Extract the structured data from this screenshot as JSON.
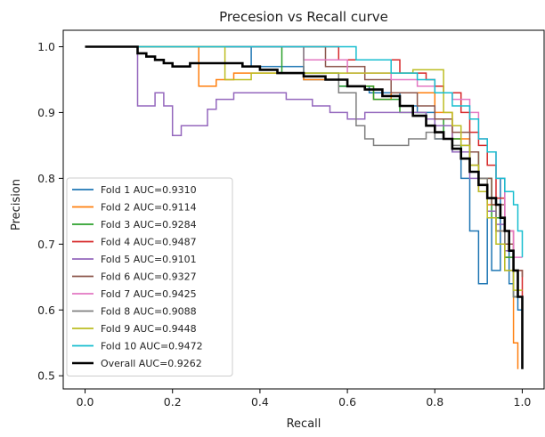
{
  "chart_data": {
    "type": "line",
    "title": "Precesion vs Recall curve",
    "xlabel": "Recall",
    "ylabel": "Precision",
    "xlim": [
      -0.05,
      1.05
    ],
    "ylim": [
      0.48,
      1.025
    ],
    "xticks": [
      "0.0",
      "0.2",
      "0.4",
      "0.6",
      "0.8",
      "1.0"
    ],
    "yticks": [
      "0.5",
      "0.6",
      "0.7",
      "0.8",
      "0.9",
      "1.0"
    ],
    "grid": false,
    "legend_position": "bottom-left",
    "series": [
      {
        "name": "Fold 1 AUC=0.9310",
        "color": "#1f77b4",
        "x": [
          0.0,
          0.25,
          0.38,
          0.5,
          0.58,
          0.65,
          0.72,
          0.76,
          0.8,
          0.84,
          0.86,
          0.88,
          0.9,
          0.92,
          0.93,
          0.95,
          0.96,
          0.97,
          0.98,
          0.99,
          1.0
        ],
        "y": [
          1.0,
          1.0,
          0.97,
          0.95,
          0.94,
          0.93,
          0.91,
          0.9,
          0.86,
          0.84,
          0.8,
          0.72,
          0.64,
          0.74,
          0.66,
          0.8,
          0.7,
          0.64,
          0.62,
          0.6,
          0.55
        ]
      },
      {
        "name": "Fold 2 AUC=0.9114",
        "color": "#ff7f0e",
        "x": [
          0.0,
          0.25,
          0.26,
          0.3,
          0.34,
          0.4,
          0.5,
          0.6,
          0.66,
          0.7,
          0.76,
          0.8,
          0.84,
          0.88,
          0.9,
          0.92,
          0.94,
          0.96,
          0.98,
          0.99
        ],
        "y": [
          1.0,
          1.0,
          0.94,
          0.95,
          0.96,
          0.96,
          0.95,
          0.94,
          0.92,
          0.93,
          0.93,
          0.9,
          0.86,
          0.82,
          0.8,
          0.76,
          0.72,
          0.68,
          0.55,
          0.51
        ]
      },
      {
        "name": "Fold 3 AUC=0.9284",
        "color": "#2ca02c",
        "x": [
          0.0,
          0.3,
          0.45,
          0.58,
          0.66,
          0.72,
          0.78,
          0.82,
          0.86,
          0.9,
          0.93,
          0.96,
          0.98,
          1.0
        ],
        "y": [
          1.0,
          1.0,
          0.96,
          0.94,
          0.92,
          0.9,
          0.89,
          0.86,
          0.84,
          0.8,
          0.74,
          0.68,
          0.62,
          0.57
        ]
      },
      {
        "name": "Fold 4 AUC=0.9487",
        "color": "#d62728",
        "x": [
          0.0,
          0.45,
          0.58,
          0.72,
          0.78,
          0.8,
          0.82,
          0.86,
          0.88,
          0.9,
          0.92,
          0.94,
          0.96,
          0.98,
          1.0
        ],
        "y": [
          1.0,
          1.0,
          0.98,
          0.96,
          0.95,
          0.94,
          0.93,
          0.9,
          0.87,
          0.85,
          0.82,
          0.77,
          0.72,
          0.66,
          0.6
        ]
      },
      {
        "name": "Fold 5 AUC=0.9101",
        "color": "#9467bd",
        "x": [
          0.0,
          0.08,
          0.12,
          0.16,
          0.18,
          0.2,
          0.22,
          0.28,
          0.3,
          0.34,
          0.4,
          0.46,
          0.52,
          0.56,
          0.6,
          0.64,
          0.7,
          0.74,
          0.78,
          0.8,
          0.84,
          0.88,
          0.9,
          0.92,
          0.94,
          0.96,
          0.98
        ],
        "y": [
          1.0,
          1.0,
          0.91,
          0.93,
          0.91,
          0.865,
          0.88,
          0.905,
          0.92,
          0.93,
          0.93,
          0.92,
          0.91,
          0.9,
          0.89,
          0.9,
          0.9,
          0.9,
          0.89,
          0.88,
          0.84,
          0.8,
          0.78,
          0.75,
          0.73,
          0.69,
          0.63
        ]
      },
      {
        "name": "Fold 6 AUC=0.9327",
        "color": "#8c564b",
        "x": [
          0.0,
          0.4,
          0.55,
          0.64,
          0.7,
          0.76,
          0.8,
          0.84,
          0.88,
          0.9,
          0.93,
          0.96,
          0.98,
          1.0
        ],
        "y": [
          1.0,
          1.0,
          0.97,
          0.95,
          0.93,
          0.91,
          0.89,
          0.87,
          0.84,
          0.8,
          0.76,
          0.7,
          0.66,
          0.65
        ]
      },
      {
        "name": "Fold 7 AUC=0.9425",
        "color": "#e377c2",
        "x": [
          0.0,
          0.38,
          0.5,
          0.6,
          0.7,
          0.76,
          0.8,
          0.84,
          0.88,
          0.9,
          0.92,
          0.94,
          0.96,
          0.98,
          1.0
        ],
        "y": [
          1.0,
          1.0,
          0.98,
          0.96,
          0.95,
          0.94,
          0.93,
          0.92,
          0.9,
          0.86,
          0.84,
          0.8,
          0.72,
          0.68,
          0.68
        ]
      },
      {
        "name": "Fold 8 AUC=0.9088",
        "color": "#7f7f7f",
        "x": [
          0.0,
          0.35,
          0.5,
          0.58,
          0.62,
          0.64,
          0.66,
          0.7,
          0.74,
          0.78,
          0.8,
          0.84,
          0.88,
          0.9,
          0.92,
          0.94,
          0.96,
          0.98,
          1.0
        ],
        "y": [
          1.0,
          1.0,
          0.96,
          0.93,
          0.88,
          0.86,
          0.85,
          0.85,
          0.86,
          0.87,
          0.86,
          0.85,
          0.82,
          0.8,
          0.77,
          0.72,
          0.66,
          0.62,
          0.55
        ]
      },
      {
        "name": "Fold 9 AUC=0.9448",
        "color": "#bcbd22",
        "x": [
          0.0,
          0.3,
          0.32,
          0.38,
          0.45,
          0.55,
          0.65,
          0.7,
          0.75,
          0.8,
          0.82,
          0.84,
          0.86,
          0.88,
          0.9,
          0.92,
          0.94,
          0.96,
          0.98,
          1.0
        ],
        "y": [
          1.0,
          1.0,
          0.95,
          0.96,
          0.96,
          0.96,
          0.96,
          0.96,
          0.965,
          0.965,
          0.9,
          0.88,
          0.85,
          0.82,
          0.78,
          0.74,
          0.7,
          0.66,
          0.63,
          0.63
        ]
      },
      {
        "name": "Fold 10 AUC=0.9472",
        "color": "#17becf",
        "x": [
          0.0,
          0.55,
          0.62,
          0.7,
          0.76,
          0.8,
          0.84,
          0.88,
          0.9,
          0.92,
          0.94,
          0.96,
          0.98,
          0.99,
          1.0
        ],
        "y": [
          1.0,
          1.0,
          0.98,
          0.96,
          0.95,
          0.93,
          0.91,
          0.89,
          0.86,
          0.84,
          0.8,
          0.78,
          0.76,
          0.72,
          0.68
        ]
      },
      {
        "name": "Overall AUC=0.9262",
        "color": "#000000",
        "x": [
          0.0,
          0.1,
          0.12,
          0.14,
          0.16,
          0.18,
          0.2,
          0.24,
          0.28,
          0.32,
          0.36,
          0.4,
          0.44,
          0.5,
          0.55,
          0.6,
          0.64,
          0.68,
          0.72,
          0.75,
          0.78,
          0.8,
          0.82,
          0.84,
          0.86,
          0.88,
          0.9,
          0.92,
          0.94,
          0.95,
          0.96,
          0.97,
          0.98,
          0.99,
          1.0
        ],
        "y": [
          1.0,
          1.0,
          0.99,
          0.985,
          0.98,
          0.975,
          0.97,
          0.975,
          0.975,
          0.975,
          0.97,
          0.965,
          0.96,
          0.955,
          0.95,
          0.94,
          0.935,
          0.925,
          0.91,
          0.895,
          0.88,
          0.87,
          0.86,
          0.845,
          0.83,
          0.81,
          0.79,
          0.77,
          0.76,
          0.74,
          0.72,
          0.69,
          0.66,
          0.62,
          0.51
        ]
      }
    ]
  }
}
